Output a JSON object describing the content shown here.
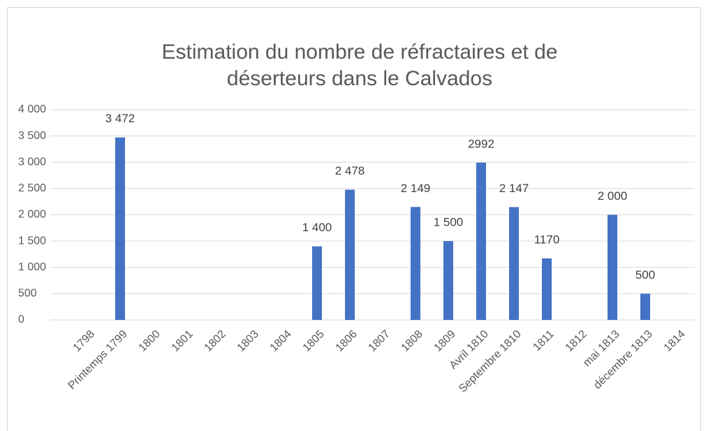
{
  "chart_data": {
    "type": "bar",
    "title": [
      "Estimation du nombre de réfractaires et de",
      "déserteurs dans le Calvados"
    ],
    "categories": [
      "1798",
      "Printemps 1799",
      "1800",
      "1801",
      "1802",
      "1803",
      "1804",
      "1805",
      "1806",
      "1807",
      "1808",
      "1809",
      "Avril 1810",
      "Septembre 1810",
      "1811",
      "1812",
      "mai 1813",
      "décembre 1813",
      "1814"
    ],
    "values": [
      null,
      3472,
      null,
      null,
      null,
      null,
      null,
      1400,
      2478,
      null,
      2149,
      1500,
      2992,
      2147,
      1170,
      null,
      2000,
      500,
      null
    ],
    "value_labels": [
      null,
      "3 472",
      null,
      null,
      null,
      null,
      null,
      "1 400",
      "2 478",
      null,
      "2 149",
      "1 500",
      "2992",
      "2 147",
      "1170",
      null,
      "2 000",
      "500",
      null
    ],
    "color": "#4472c4",
    "ylim": [
      0,
      4000
    ],
    "yticks": [
      0,
      500,
      {
        "value": 1000,
        "label": "1 000"
      },
      {
        "value": 1500,
        "label": "1 500"
      },
      {
        "value": 2000,
        "label": "2 000"
      },
      {
        "value": 2500,
        "label": "2 500"
      },
      {
        "value": 3000,
        "label": "3 000"
      },
      {
        "value": 3500,
        "label": "3 500"
      },
      {
        "value": 4000,
        "label": "4 000"
      }
    ],
    "grid": true
  }
}
